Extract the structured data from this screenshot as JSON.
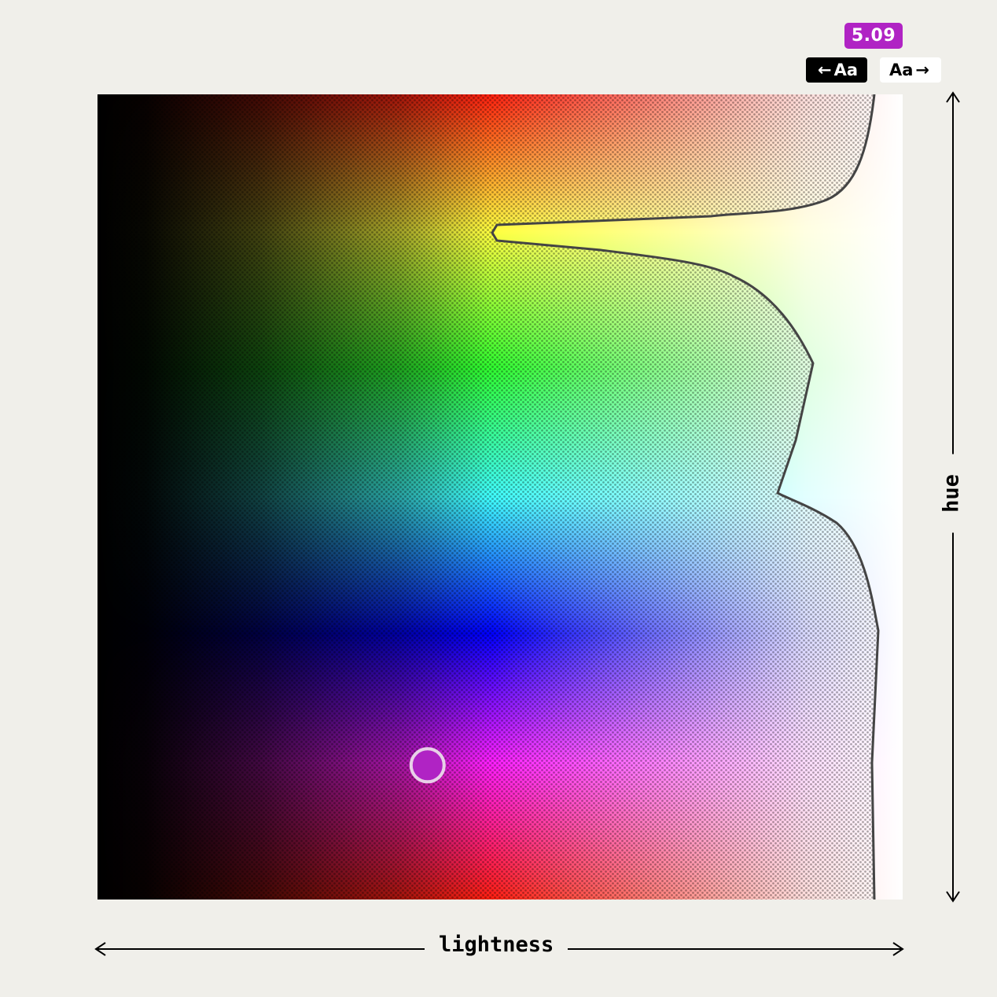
{
  "contrast_badge": {
    "value": "5.09",
    "color": "#b023c4"
  },
  "text_toggles": {
    "dark": {
      "arrow": "←",
      "label": "Aa",
      "selected": true
    },
    "light": {
      "label": "Aa",
      "arrow": "→",
      "selected": false
    }
  },
  "axes": {
    "x_label": "lightness",
    "y_label": "hue"
  },
  "picker": {
    "selected_color": "#b023c4",
    "lightness": 0.41,
    "hue": 300
  },
  "icons": {
    "x_axis": "double-headed-horizontal-arrow-icon",
    "y_axis": "double-headed-vertical-arrow-icon",
    "pattern": "checkered-out-of-range-pattern"
  }
}
